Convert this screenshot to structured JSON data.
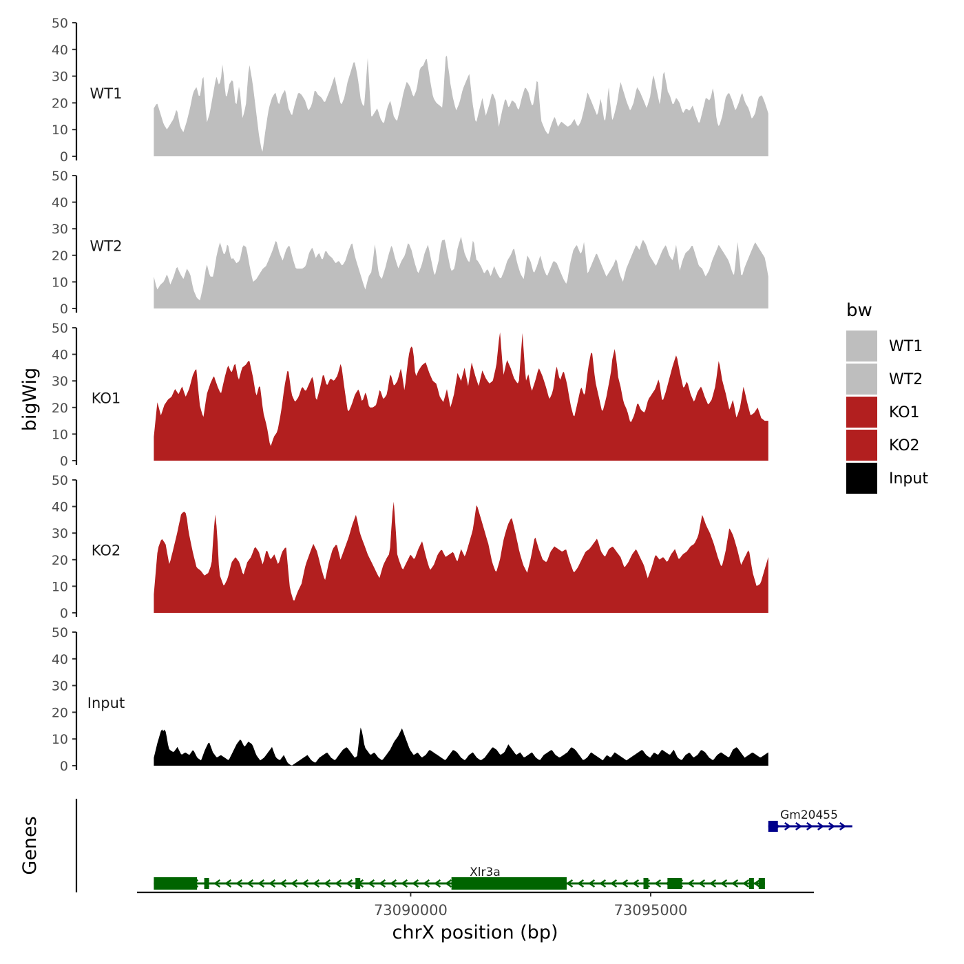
{
  "chart_data": {
    "type": "area",
    "title": "",
    "ylabel": "bigWig",
    "xlabel": "chrX position (bp)",
    "genes_label": "Genes",
    "ylim": [
      0,
      50
    ],
    "yticks": [
      0,
      10,
      20,
      30,
      40,
      50
    ],
    "xlim": [
      73084300,
      73098400
    ],
    "data_range": [
      73084650,
      73097450
    ],
    "xticks": [
      73090000,
      73095000
    ],
    "xtick_labels": [
      "73090000",
      "73095000"
    ],
    "legend": {
      "title": "bw",
      "entries": [
        {
          "label": "WT1",
          "color": "#bebebe"
        },
        {
          "label": "WT2",
          "color": "#bebebe"
        },
        {
          "label": "KO1",
          "color": "#b21f1f"
        },
        {
          "label": "KO2",
          "color": "#b21f1f"
        },
        {
          "label": "Input",
          "color": "#000000"
        }
      ]
    },
    "series": [
      {
        "name": "WT1",
        "color": "#bebebe",
        "values": [
          18,
          20,
          16,
          12,
          10,
          12,
          14,
          18,
          11,
          9,
          13,
          18,
          24,
          26,
          21,
          14,
          12,
          16,
          23,
          30,
          26,
          14,
          21,
          27,
          29,
          18,
          27,
          14,
          19,
          35,
          28,
          18,
          8,
          1,
          10,
          18,
          22,
          24,
          19,
          23,
          25,
          18,
          15,
          20,
          24,
          23,
          21,
          17,
          19,
          25,
          23,
          22,
          20,
          23,
          26,
          30,
          24,
          19,
          22,
          28,
          32,
          36,
          30,
          21,
          18,
          16,
          14,
          16,
          18,
          14,
          12,
          18,
          21,
          15,
          13,
          18,
          24,
          28,
          26,
          22,
          25,
          33,
          34,
          37,
          29,
          22,
          20,
          19,
          18,
          24,
          29,
          22,
          17,
          20,
          25,
          28,
          31,
          20,
          12,
          17,
          22,
          15,
          19,
          24,
          21,
          11,
          17,
          22,
          18,
          21,
          20,
          17,
          22,
          26,
          24,
          19,
          20,
          16,
          13,
          10,
          8,
          12,
          15,
          11,
          13,
          12,
          11,
          12,
          14,
          11,
          13,
          18,
          24,
          21,
          18,
          15,
          22,
          14,
          8,
          12,
          15,
          20,
          28,
          24,
          20,
          17,
          20,
          26,
          24,
          21,
          18,
          22,
          31,
          25,
          19,
          21,
          25,
          23,
          19,
          22,
          20,
          16,
          18,
          17,
          19,
          15,
          12,
          17,
          22,
          21,
          18,
          14,
          11,
          15,
          22,
          24,
          21,
          17,
          20,
          24,
          20,
          18,
          14,
          16,
          22,
          23,
          20,
          16
        ],
        "peaks": [
          {
            "t": 0.08,
            "v": 32
          },
          {
            "t": 0.112,
            "v": 36
          },
          {
            "t": 0.348,
            "v": 37
          },
          {
            "t": 0.476,
            "v": 40
          },
          {
            "t": 0.624,
            "v": 30
          },
          {
            "t": 0.83,
            "v": 33
          },
          {
            "t": 0.74,
            "v": 27
          },
          {
            "t": 0.91,
            "v": 26
          }
        ]
      },
      {
        "name": "WT2",
        "color": "#bebebe",
        "values": [
          12,
          7,
          9,
          10,
          13,
          9,
          12,
          16,
          13,
          11,
          15,
          13,
          7,
          4,
          3,
          9,
          17,
          12,
          12,
          20,
          25,
          21,
          17,
          18,
          19,
          17,
          18,
          24,
          23,
          16,
          10,
          11,
          13,
          15,
          16,
          19,
          22,
          26,
          21,
          18,
          22,
          24,
          19,
          15,
          15,
          15,
          16,
          21,
          23,
          19,
          21,
          18,
          22,
          20,
          19,
          17,
          18,
          16,
          18,
          22,
          25,
          19,
          15,
          11,
          7,
          12,
          14,
          11,
          13,
          11,
          15,
          20,
          24,
          19,
          15,
          18,
          20,
          25,
          22,
          17,
          13,
          16,
          21,
          24,
          18,
          12,
          17,
          22,
          26,
          20,
          14,
          15,
          23,
          27,
          21,
          18,
          17,
          14,
          18,
          16,
          13,
          15,
          12,
          16,
          13,
          11,
          14,
          18,
          20,
          23,
          17,
          13,
          11,
          20,
          18,
          13,
          16,
          20,
          15,
          12,
          15,
          18,
          17,
          14,
          11,
          9,
          17,
          22,
          24,
          21,
          17,
          12,
          15,
          18,
          21,
          18,
          15,
          12,
          14,
          16,
          19,
          13,
          10,
          15,
          18,
          21,
          24,
          22,
          26,
          24,
          20,
          18,
          16,
          19,
          22,
          24,
          20,
          18,
          16,
          13,
          18,
          21,
          22,
          24,
          20,
          16,
          15,
          12,
          14,
          18,
          21,
          24,
          22,
          20,
          18,
          14,
          11,
          13,
          12,
          16,
          19,
          22,
          25,
          23,
          21,
          19,
          12
        ],
        "peaks": [
          {
            "t": 0.12,
            "v": 25
          },
          {
            "t": 0.36,
            "v": 25
          },
          {
            "t": 0.47,
            "v": 26
          },
          {
            "t": 0.52,
            "v": 27
          },
          {
            "t": 0.7,
            "v": 25
          },
          {
            "t": 0.85,
            "v": 24
          },
          {
            "t": 0.95,
            "v": 25
          }
        ]
      },
      {
        "name": "KO1",
        "color": "#b21f1f",
        "values": [
          9,
          22,
          17,
          21,
          23,
          24,
          27,
          25,
          28,
          24,
          27,
          32,
          35,
          21,
          16,
          25,
          29,
          32,
          28,
          25,
          31,
          36,
          33,
          37,
          30,
          35,
          36,
          38,
          32,
          24,
          29,
          18,
          13,
          5,
          9,
          11,
          18,
          28,
          35,
          25,
          22,
          24,
          28,
          26,
          29,
          32,
          22,
          27,
          33,
          28,
          31,
          30,
          32,
          37,
          27,
          18,
          21,
          25,
          27,
          22,
          26,
          20,
          20,
          21,
          27,
          23,
          25,
          33,
          28,
          30,
          35,
          26,
          38,
          43,
          31,
          34,
          36,
          37,
          33,
          30,
          29,
          24,
          22,
          27,
          20,
          25,
          33,
          30,
          35,
          28,
          37,
          32,
          28,
          34,
          31,
          29,
          30,
          36,
          49,
          32,
          38,
          35,
          31,
          29,
          30,
          27,
          33,
          26,
          30,
          35,
          32,
          28,
          23,
          26,
          36,
          30,
          34,
          29,
          21,
          16,
          22,
          28,
          24,
          35,
          42,
          30,
          24,
          18,
          23,
          30,
          37,
          33,
          29,
          22,
          19,
          14,
          17,
          22,
          19,
          18,
          23,
          25,
          27,
          31,
          22,
          26,
          31,
          36,
          40,
          33,
          27,
          30,
          25,
          22,
          26,
          28,
          24,
          21,
          23,
          28,
          38,
          30,
          25,
          19,
          23,
          16,
          20,
          28,
          22,
          17,
          18,
          20,
          16,
          15,
          15
        ],
        "peaks": [
          {
            "t": 0.6,
            "v": 48
          },
          {
            "t": 0.75,
            "v": 42
          },
          {
            "t": 0.42,
            "v": 43
          }
        ]
      },
      {
        "name": "KO2",
        "color": "#b21f1f",
        "values": [
          7,
          24,
          28,
          26,
          18,
          24,
          30,
          37,
          38,
          30,
          23,
          17,
          16,
          14,
          15,
          19,
          25,
          14,
          10,
          13,
          19,
          21,
          19,
          14,
          19,
          21,
          25,
          23,
          18,
          24,
          20,
          22,
          18,
          23,
          25,
          9,
          4,
          8,
          11,
          18,
          22,
          26,
          23,
          17,
          12,
          19,
          24,
          26,
          20,
          24,
          28,
          33,
          37,
          30,
          26,
          22,
          19,
          16,
          13,
          18,
          21,
          23,
          25,
          20,
          16,
          19,
          22,
          20,
          24,
          27,
          21,
          16,
          18,
          22,
          24,
          21,
          22,
          23,
          19,
          24,
          21,
          26,
          31,
          41,
          36,
          31,
          26,
          19,
          15,
          20,
          28,
          33,
          36,
          30,
          23,
          18,
          15,
          21,
          29,
          24,
          20,
          19,
          23,
          25,
          24,
          23,
          24,
          19,
          15,
          17,
          20,
          23,
          24,
          26,
          28,
          23,
          21,
          24,
          25,
          23,
          21,
          17,
          19,
          22,
          24,
          21,
          18,
          13,
          17,
          22,
          20,
          21,
          19,
          22,
          24,
          20,
          22,
          23,
          25,
          26,
          29,
          37,
          33,
          30,
          26,
          21,
          17,
          23,
          32,
          29,
          24,
          18,
          21,
          24,
          15,
          10,
          11,
          16,
          21
        ],
        "peaks": [
          {
            "t": 0.39,
            "v": 43
          },
          {
            "t": 0.05,
            "v": 38
          },
          {
            "t": 0.1,
            "v": 37
          }
        ]
      },
      {
        "name": "Input",
        "color": "#000000",
        "values": [
          3,
          9,
          14,
          8,
          6,
          5,
          7,
          4,
          5,
          4,
          6,
          3,
          2,
          6,
          9,
          5,
          3,
          4,
          3,
          2,
          5,
          8,
          10,
          7,
          9,
          8,
          4,
          2,
          3,
          5,
          7,
          3,
          2,
          4,
          1,
          0,
          1,
          2,
          3,
          4,
          2,
          1,
          3,
          4,
          5,
          3,
          2,
          4,
          6,
          7,
          5,
          3,
          4,
          8,
          6,
          4,
          5,
          3,
          2,
          4,
          6,
          9,
          11,
          14,
          10,
          6,
          4,
          5,
          3,
          4,
          6,
          5,
          4,
          3,
          2,
          4,
          6,
          5,
          3,
          2,
          4,
          5,
          3,
          2,
          3,
          5,
          7,
          6,
          4,
          5,
          8,
          6,
          4,
          5,
          3,
          4,
          5,
          3,
          2,
          4,
          5,
          6,
          4,
          3,
          4,
          5,
          7,
          6,
          4,
          2,
          3,
          5,
          4,
          3,
          2,
          4,
          3,
          5,
          4,
          3,
          2,
          3,
          4,
          5,
          6,
          4,
          3,
          5,
          4,
          6,
          5,
          4,
          6,
          3,
          2,
          4,
          5,
          3,
          4,
          6,
          5,
          3,
          2,
          4,
          5,
          4,
          3,
          6,
          7,
          5,
          3,
          4,
          5,
          4,
          3,
          4,
          5
        ],
        "peaks": [
          {
            "t": 0.337,
            "v": 15
          },
          {
            "t": 0.018,
            "v": 14
          }
        ]
      }
    ],
    "genes": [
      {
        "name": "Xlr3a",
        "strand": "-",
        "color": "#006400",
        "row": "bottom",
        "start": 73084650,
        "end": 73097380,
        "exons": [
          [
            73084650,
            73085550,
            "utr"
          ],
          [
            73085700,
            73085800,
            "cds"
          ],
          [
            73088850,
            73088950,
            "cds"
          ],
          [
            73090850,
            73093250,
            "utr"
          ],
          [
            73094850,
            73094950,
            "cds"
          ],
          [
            73095350,
            73095650,
            "cds"
          ],
          [
            73097050,
            73097150,
            "cds"
          ],
          [
            73097250,
            73097380,
            "cds"
          ]
        ]
      },
      {
        "name": "Gm20455",
        "strand": "+",
        "color": "#00008b",
        "row": "top",
        "start": 73097450,
        "end": 73099200,
        "exons": [
          [
            73097450,
            73097650,
            "cds"
          ]
        ]
      }
    ]
  }
}
